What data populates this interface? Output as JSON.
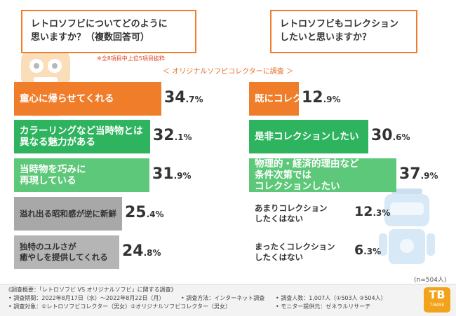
{
  "chart_data": [
    {
      "type": "bar",
      "title": "レトロソフビについてどのように思いますか？（複数回答可）",
      "note": "※全8項目中上位5項目抜粋",
      "categories": [
        "童心に帰らせてくれる",
        "カラーリングなど当時物とは\n異なる魅力がある",
        "当時物を巧みに\n再現している",
        "溢れ出る昭和感が逆に新鮮",
        "独特のユルさが\n癒やしを提供してくれる"
      ],
      "values": [
        34.7,
        32.1,
        31.9,
        25.4,
        24.8
      ],
      "value_labels": [
        [
          "34",
          ".7%"
        ],
        [
          "32",
          ".1%"
        ],
        [
          "31",
          ".9%"
        ],
        [
          "25",
          ".4%"
        ],
        [
          "24",
          ".8%"
        ]
      ],
      "unit": "%",
      "colors": [
        "#ef7d2a",
        "#2eb45e",
        "#5ec87a",
        "#a8a8a8",
        "#b5b5b5"
      ],
      "xlim": [
        0,
        40
      ]
    },
    {
      "type": "bar",
      "title": "レトロソフビもコレクションしたいと思いますか？",
      "categories": [
        "既にコレクションしている",
        "是非コレクションしたい",
        "物理的・経済的理由など\n条件次第では\nコレクションしたい",
        "あまりコレクション\nしたくはない",
        "まったくコレクション\nしたくはない"
      ],
      "values": [
        12.9,
        30.6,
        37.9,
        12.3,
        6.3
      ],
      "value_labels": [
        [
          "12",
          ".9%"
        ],
        [
          "30",
          ".6%"
        ],
        [
          "37",
          ".9%"
        ],
        [
          "12",
          ".3%"
        ],
        [
          "6",
          ".3%"
        ]
      ],
      "unit": "%",
      "colors": [
        "#ef7d2a",
        "#2eb45e",
        "#5ec87a",
        "#ffffff",
        "#ffffff"
      ],
      "xlim": [
        0,
        40
      ]
    }
  ],
  "questions": {
    "left": "レトロソフビについてどのように\n思いますか？（複数回答可）",
    "right": "レトロソフビもコレクション\nしたいと思いますか？"
  },
  "note": "※全8項目中上位5項目抜粋",
  "target_label": "＜ オリジナルソフビコレクターに調査 ＞",
  "n_label": "(n=504人)",
  "footer": {
    "title": "《調査概要：「レトロソフビ VS オリジナルソフビ」に関する調査》",
    "period": "• 調査期間：2022年8月17日（水）〜2022年8月22日（月）",
    "method": "• 調査方法：インターネット調査",
    "people": "• 調査人数：1,007人（①503人 ②504人）",
    "target": "• 調査対象：①レトロソフビコレクター（男女）②オリジナルソフビコレクター（男女）",
    "provider": "• モニター提供元：ゼネラルリサーチ"
  },
  "logo": {
    "text": "TB",
    "sub": "T-BASE"
  }
}
